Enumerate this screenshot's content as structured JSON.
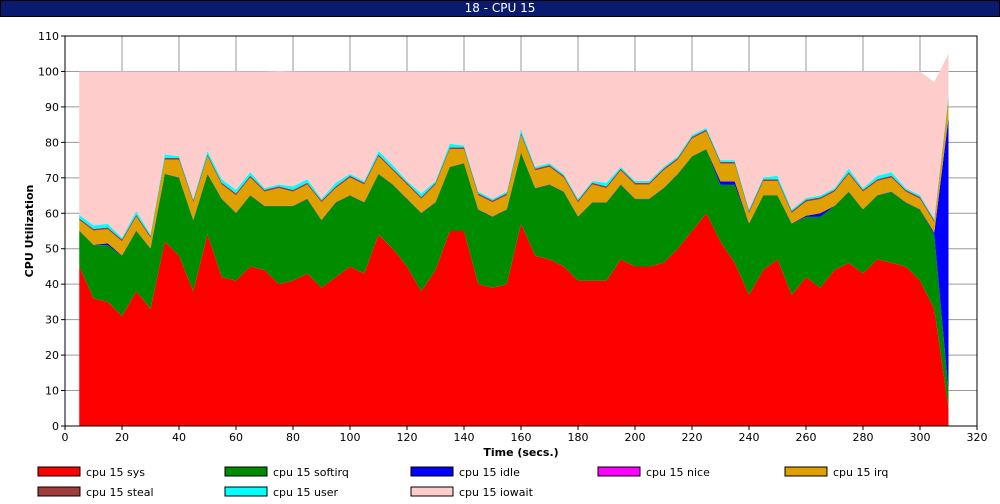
{
  "window": {
    "title": "18 - CPU 15"
  },
  "chart_data": {
    "type": "area",
    "stacked": true,
    "xlabel": "Time (secs.)",
    "ylabel": "CPU Utilization",
    "xlim": [
      0,
      320
    ],
    "ylim": [
      0,
      110
    ],
    "x_ticks": [
      0,
      20,
      40,
      60,
      80,
      100,
      120,
      140,
      160,
      180,
      200,
      220,
      240,
      260,
      280,
      300,
      320
    ],
    "y_ticks": [
      0,
      10,
      20,
      30,
      40,
      50,
      60,
      70,
      80,
      90,
      100,
      110
    ],
    "grid": true,
    "legend_position": "bottom",
    "x": [
      5,
      10,
      15,
      20,
      25,
      30,
      35,
      40,
      45,
      50,
      55,
      60,
      65,
      70,
      75,
      80,
      85,
      90,
      95,
      100,
      105,
      110,
      115,
      120,
      125,
      130,
      135,
      140,
      145,
      150,
      155,
      160,
      165,
      170,
      175,
      180,
      185,
      190,
      195,
      200,
      205,
      210,
      215,
      220,
      225,
      230,
      235,
      240,
      245,
      250,
      255,
      260,
      265,
      270,
      275,
      280,
      285,
      290,
      295,
      300,
      305,
      310
    ],
    "series": [
      {
        "name": "cpu 15 sys",
        "color": "#ff0000",
        "values": [
          45,
          36,
          35,
          31,
          38,
          33,
          52,
          48,
          38,
          54,
          42,
          41,
          45,
          44,
          40,
          41,
          43,
          39,
          42,
          45,
          43,
          54,
          50,
          45,
          38,
          44,
          55,
          55,
          40,
          39,
          40,
          57,
          48,
          47,
          45,
          41,
          41,
          41,
          47,
          45,
          45,
          46,
          50,
          55,
          60,
          52,
          46,
          37,
          44,
          47,
          37,
          42,
          39,
          44,
          46,
          43,
          47,
          46,
          45,
          41,
          33,
          5
        ]
      },
      {
        "name": "cpu 15 softirq",
        "color": "#008c00",
        "values": [
          10,
          15,
          16,
          17,
          17,
          17,
          19,
          22,
          20,
          17,
          22,
          19,
          20,
          18,
          22,
          21,
          21,
          19,
          21,
          20,
          20,
          17,
          18,
          19,
          22,
          19,
          18,
          19,
          21,
          20,
          21,
          20,
          19,
          21,
          21,
          18,
          22,
          22,
          21,
          19,
          19,
          21,
          21,
          21,
          18,
          16,
          22,
          20,
          21,
          18,
          20,
          17,
          20,
          18,
          20,
          18,
          18,
          20,
          18,
          20,
          21,
          5
        ]
      },
      {
        "name": "cpu 15 idle",
        "color": "#0000ff",
        "values": [
          0.1,
          0.1,
          0.5,
          0.1,
          0.1,
          0.1,
          0.1,
          0.1,
          0.1,
          0.1,
          0.1,
          0.1,
          0.1,
          0.1,
          0.1,
          0.1,
          0.1,
          0.1,
          0.1,
          0.1,
          0.1,
          0.1,
          0.1,
          0.1,
          0.1,
          0.1,
          0.1,
          0.1,
          0.1,
          0.1,
          0.1,
          0.1,
          0.1,
          0.1,
          0.1,
          0.1,
          0.1,
          0.1,
          0.1,
          0.1,
          0.1,
          0.1,
          0.1,
          0.1,
          0.1,
          1,
          1,
          0.1,
          0.1,
          0.1,
          0.1,
          0.3,
          1,
          0.1,
          0.1,
          0.1,
          0.1,
          0.1,
          0.1,
          0.1,
          0.5,
          77
        ]
      },
      {
        "name": "cpu 15 nice",
        "color": "#ff00ff",
        "values": [
          0,
          0,
          0,
          0,
          0,
          0,
          0,
          0,
          0,
          0,
          0,
          0,
          0,
          0,
          0,
          0,
          0,
          0,
          0,
          0,
          0,
          0,
          0,
          0,
          0,
          0,
          0,
          0,
          0,
          0,
          0,
          0,
          0,
          0,
          0,
          0,
          0,
          0,
          0,
          0,
          0,
          0,
          0,
          0,
          0,
          0,
          0,
          0,
          0,
          0,
          0,
          0,
          0,
          0,
          0,
          0,
          0,
          0,
          0,
          0,
          0,
          0
        ]
      },
      {
        "name": "cpu 15 irq",
        "color": "#e0a000",
        "values": [
          3,
          4,
          4,
          4,
          4,
          3,
          4,
          5,
          5,
          5,
          4,
          5,
          5,
          4,
          5,
          4,
          4,
          5,
          4,
          5,
          5,
          5,
          4,
          4,
          4,
          5,
          5,
          4,
          4,
          4,
          4,
          5,
          5,
          5,
          4,
          4,
          5,
          4,
          4,
          4,
          4,
          5,
          4,
          5,
          5,
          5,
          5,
          3,
          4,
          4,
          3,
          4,
          4,
          4,
          5,
          5,
          4,
          4,
          3,
          3,
          3,
          5
        ]
      },
      {
        "name": "cpu 15 steal",
        "color": "#a03c3c",
        "values": [
          0.5,
          0.5,
          0.5,
          0.5,
          0.5,
          0.5,
          0.5,
          0.5,
          0.5,
          0.5,
          0.5,
          0.5,
          0.5,
          0.5,
          0.5,
          0.5,
          0.5,
          0.5,
          0.5,
          0.5,
          0.5,
          0.5,
          0.5,
          0.5,
          0.5,
          0.5,
          0.5,
          0.5,
          0.5,
          0.5,
          0.5,
          0.5,
          0.5,
          0.5,
          0.5,
          0.5,
          0.5,
          0.5,
          0.5,
          0.5,
          0.5,
          0.5,
          0.5,
          0.5,
          0.5,
          0.5,
          0.5,
          0.5,
          0.5,
          0.5,
          0.5,
          0.5,
          0.5,
          0.5,
          0.5,
          0.5,
          0.5,
          0.5,
          0.5,
          0.5,
          0.5,
          0.5
        ]
      },
      {
        "name": "cpu 15 user",
        "color": "#00ffff",
        "values": [
          1,
          1,
          1,
          0.5,
          1,
          0.5,
          1,
          0.5,
          0.5,
          1,
          1,
          1,
          1,
          0.5,
          0.5,
          1,
          1,
          0.5,
          1,
          0.5,
          0.5,
          1,
          1,
          0.5,
          1,
          0.5,
          1,
          0.5,
          0.5,
          0.5,
          0.5,
          1,
          0.5,
          0.5,
          0.5,
          0.5,
          0.5,
          1,
          0.5,
          0.5,
          0.5,
          0.5,
          0.5,
          0.5,
          0.5,
          0.5,
          0.5,
          0.5,
          0.5,
          1,
          0.5,
          0.5,
          0.5,
          0.5,
          1,
          0.5,
          1,
          1,
          0.5,
          0.5,
          0.5,
          1
        ]
      },
      {
        "name": "cpu 15 iowait",
        "color": "#ffcccc",
        "values": [
          40.4,
          43.4,
          43,
          46.9,
          39.4,
          45.9,
          23.4,
          23.9,
          35.9,
          22.4,
          30.4,
          33.4,
          28.4,
          32.9,
          32,
          32.4,
          30.4,
          35.9,
          31.4,
          28.9,
          30.9,
          22.4,
          26.4,
          30.9,
          34.4,
          30.9,
          20.4,
          20.9,
          33.9,
          35.9,
          33.9,
          16.4,
          26.9,
          25.9,
          28.9,
          35.9,
          30.9,
          31.4,
          26.9,
          30.9,
          30.9,
          26.9,
          23.9,
          17.9,
          15.9,
          25,
          25,
          38.9,
          29.9,
          29.4,
          38.9,
          35.7,
          35,
          32.9,
          27.4,
          32.9,
          29.4,
          28.4,
          32.9,
          34.9,
          38.5,
          11.5
        ]
      }
    ]
  }
}
